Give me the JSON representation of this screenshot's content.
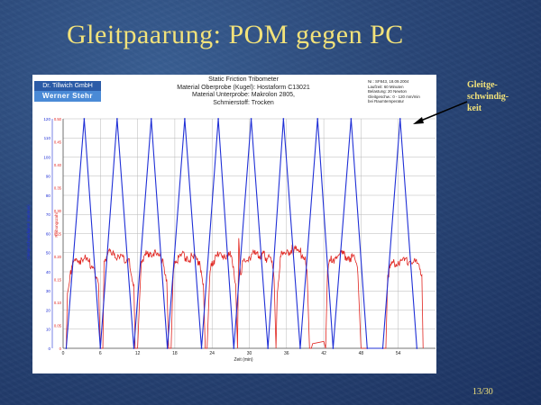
{
  "slide": {
    "title": "Gleitpaarung: POM gegen PC",
    "page_number": "13/30",
    "annotation_lines": [
      "Gleitge-",
      "schwindig-",
      "keit"
    ]
  },
  "logo": {
    "line1": "Dr. Tillwich GmbH",
    "line2": "Werner Stehr"
  },
  "chart_header": [
    "Static Friction Tribometer",
    "Material Oberprobe (Kugel): Hostaform C13021",
    "Material Unterprobe: Makrolon 2805,",
    "Schmierstoff: Trocken"
  ],
  "info_box": [
    "Nr.: SF843, 18.09.2004",
    "Laufzeit: 60 Minuten",
    "Belastung: 20 Newton",
    "Gleitgeschw.: 0 - 120 mm/min",
    "bei Raumtemperatur"
  ],
  "colors": {
    "velocity": "#1f2fd6",
    "friction": "#e0241f",
    "title": "#f2e27a"
  },
  "chart_data": {
    "type": "line",
    "xlabel": "Zeit (min)",
    "ylabel_left": "Gleitgeschwindigkeit (mm/min)",
    "ylabel_right": "Reibungszahl",
    "xlim": [
      0,
      60
    ],
    "ylim_left": [
      0,
      120
    ],
    "ylim_right": [
      0,
      0.5
    ],
    "x_ticks": [
      "0",
      "6",
      "12",
      "18",
      "24",
      "30",
      "36",
      "42",
      "48",
      "54"
    ],
    "y_left_ticks": [
      "0",
      "10",
      "20",
      "30",
      "40",
      "50",
      "60",
      "70",
      "80",
      "90",
      "100",
      "110",
      "120"
    ],
    "y_right_ticks": [
      "0",
      "0.05",
      "0.10",
      "0.15",
      "0.20",
      "0.25",
      "0.30",
      "0.35",
      "0.40",
      "0.45",
      "0.50"
    ],
    "grid": true,
    "series": [
      {
        "axis": "left",
        "x": [
          0.5,
          3.4,
          6.0,
          8.7,
          11.4,
          14.2,
          16.8,
          19.6,
          22.3,
          25.0,
          27.5,
          30.3,
          33.0,
          35.5,
          38.2,
          41.0,
          43.5,
          46.4,
          49.0,
          51.5,
          54.3,
          57.0
        ],
        "y": [
          0,
          120,
          0,
          120,
          0,
          120,
          0,
          120,
          0,
          120,
          0,
          120,
          0,
          120,
          0,
          120,
          0,
          120,
          0,
          0,
          120,
          0
        ]
      },
      {
        "axis": "right",
        "x": [
          0.5,
          0.7,
          1.2,
          2.0,
          3.0,
          4.0,
          5.0,
          5.7,
          6.0,
          6.4,
          6.6,
          7.0,
          8.0,
          9.0,
          10.5,
          11.4,
          11.6,
          12.0,
          12.3,
          12.6,
          13.0,
          14.0,
          15.0,
          16.0,
          16.7,
          17.0,
          17.4,
          17.7,
          18.0,
          19.0,
          20.0,
          21.0,
          22.0,
          22.6,
          22.9,
          23.2,
          23.6,
          24.0,
          25.0,
          26.0,
          27.0,
          27.8,
          28.1,
          28.3,
          28.6,
          29.0,
          30.0,
          31.0,
          32.5,
          33.5,
          34.0,
          34.3,
          34.5,
          35.0,
          36.0,
          37.0,
          38.0,
          39.0,
          39.3,
          39.7,
          40.0,
          40.2,
          42.0,
          42.3,
          42.6,
          43.0,
          44.0,
          45.0,
          46.0,
          47.0,
          47.5,
          48.0,
          48.3,
          51.8,
          52.0,
          52.3,
          53.0,
          54.0,
          55.0,
          56.0,
          57.0,
          57.8,
          58.0
        ],
        "y": [
          0.0,
          0.12,
          0.17,
          0.19,
          0.195,
          0.19,
          0.175,
          0.14,
          0.0,
          0.0,
          0.19,
          0.2,
          0.21,
          0.2,
          0.195,
          0.14,
          0.0,
          0.0,
          0.1,
          0.19,
          0.2,
          0.21,
          0.205,
          0.195,
          0.15,
          0.0,
          0.0,
          0.15,
          0.19,
          0.2,
          0.2,
          0.195,
          0.19,
          0.14,
          0.0,
          0.0,
          0.15,
          0.19,
          0.2,
          0.205,
          0.2,
          0.14,
          0.0,
          0.24,
          0.16,
          0.19,
          0.2,
          0.205,
          0.2,
          0.195,
          0.15,
          0.0,
          0.12,
          0.2,
          0.21,
          0.215,
          0.21,
          0.2,
          0.17,
          0.0,
          0.0,
          0.01,
          0.015,
          0.0,
          0.17,
          0.19,
          0.2,
          0.205,
          0.2,
          0.195,
          0.16,
          0.0,
          0.0,
          0.0,
          0.0,
          0.16,
          0.185,
          0.19,
          0.19,
          0.19,
          0.185,
          0.16,
          0.0
        ]
      }
    ]
  }
}
